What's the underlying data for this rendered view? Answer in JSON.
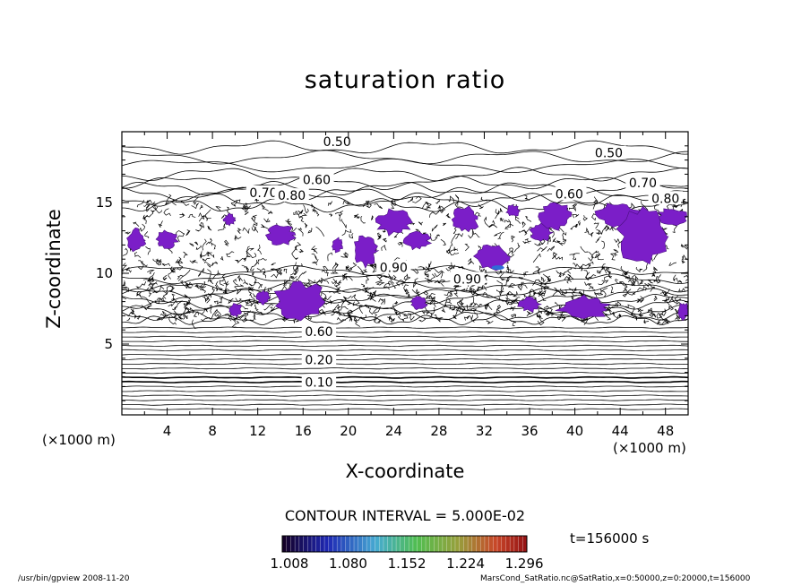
{
  "chart_data": {
    "type": "heatmap",
    "title": "saturation ratio",
    "xlabel": "X-coordinate",
    "ylabel": "Z-coordinate",
    "x_unit": "(×1000 m)",
    "y_unit": "(×1000 m)",
    "xlim": [
      0,
      50
    ],
    "ylim": [
      0,
      20
    ],
    "x_ticks": [
      4,
      8,
      12,
      16,
      20,
      24,
      28,
      32,
      36,
      40,
      44,
      48
    ],
    "y_ticks": [
      5,
      10,
      15
    ],
    "contour_labels": [
      "0.50",
      "0.50",
      "0.60",
      "0.70",
      "0.70",
      "0.60",
      "0.80",
      "0.80",
      "0.90",
      "0.90",
      "0.60",
      "0.20",
      "0.10"
    ],
    "contour_interval_text": "CONTOUR INTERVAL = 5.000E-02",
    "colorbar": {
      "ticks": [
        "1.008",
        "1.080",
        "1.152",
        "1.224",
        "1.296"
      ],
      "min": 1.008,
      "max": 1.296
    },
    "time_label": "t=156000 s"
  },
  "footer": {
    "left": "/usr/bin/gpview   2008-11-20",
    "right": "MarsCond_SatRatio.nc@SatRatio,x=0:50000,z=0:20000,t=156000"
  }
}
